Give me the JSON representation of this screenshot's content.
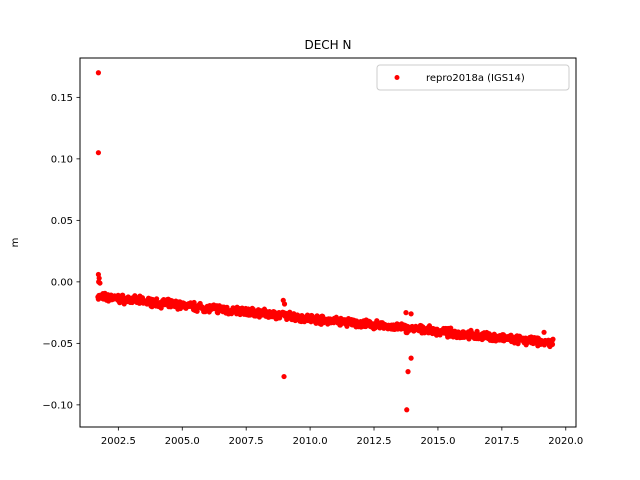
{
  "chart_data": {
    "type": "scatter",
    "title": "DECH N",
    "xlabel": "",
    "ylabel": "m",
    "xlim": [
      2001.0,
      2020.4
    ],
    "ylim": [
      -0.118,
      0.182
    ],
    "x_ticks": [
      "2002.5",
      "2005.0",
      "2007.5",
      "2010.0",
      "2012.5",
      "2015.0",
      "2017.5",
      "2020.0"
    ],
    "y_ticks": [
      "0.15",
      "0.10",
      "0.05",
      "0.00",
      "−0.05",
      "−0.10"
    ],
    "legend_position": "top-right",
    "grid": false,
    "marker_color": "#ff0000",
    "series": [
      {
        "name": "repro2018a (IGS14)",
        "trend": {
          "x_start": 2001.7,
          "x_end": 2019.5,
          "y_start": -0.012,
          "y_end": -0.05,
          "spread": 0.004,
          "count": 900
        },
        "points": [
          {
            "x": 2001.72,
            "y": 0.17
          },
          {
            "x": 2001.72,
            "y": 0.105
          },
          {
            "x": 2001.72,
            "y": 0.006
          },
          {
            "x": 2001.75,
            "y": 0.003
          },
          {
            "x": 2001.73,
            "y": 0.0
          },
          {
            "x": 2001.78,
            "y": -0.001
          },
          {
            "x": 2008.95,
            "y": -0.015
          },
          {
            "x": 2009.0,
            "y": -0.018
          },
          {
            "x": 2008.98,
            "y": -0.077
          },
          {
            "x": 2013.75,
            "y": -0.025
          },
          {
            "x": 2013.95,
            "y": -0.026
          },
          {
            "x": 2013.78,
            "y": -0.104
          },
          {
            "x": 2013.83,
            "y": -0.073
          },
          {
            "x": 2013.95,
            "y": -0.062
          },
          {
            "x": 2019.15,
            "y": -0.041
          }
        ]
      }
    ]
  }
}
